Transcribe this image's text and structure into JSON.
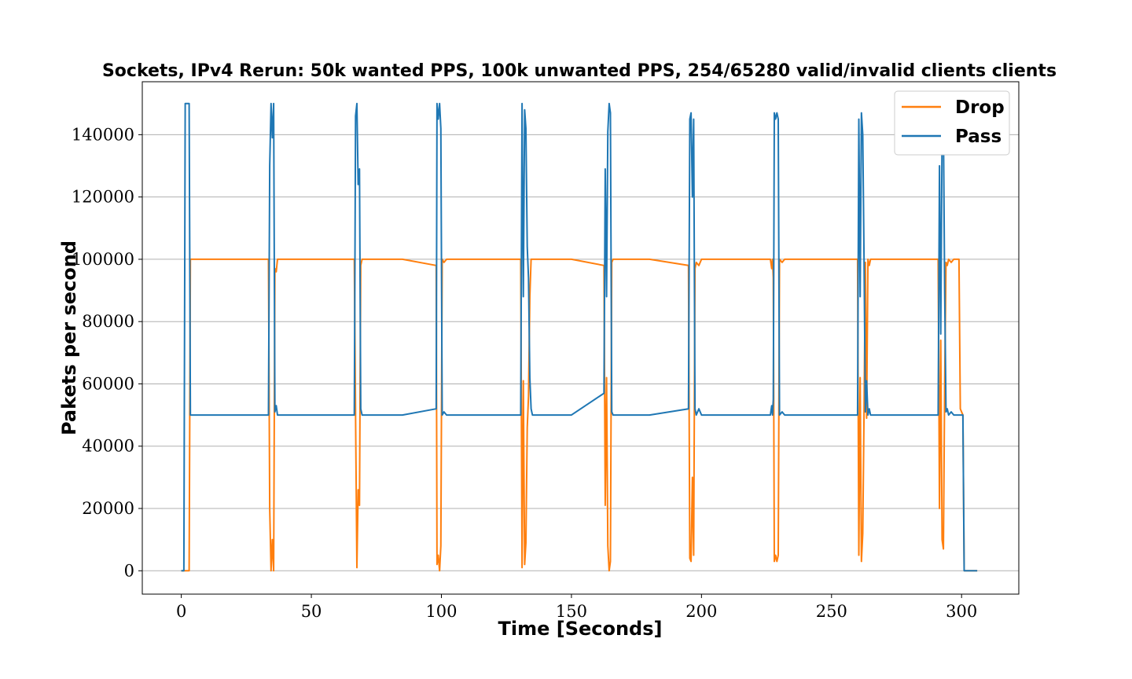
{
  "chart_data": {
    "type": "line",
    "title": "Sockets, IPv4 Rerun: 50k wanted PPS, 100k unwanted PPS, 254/65280 valid/invalid clients clients",
    "xlabel": "Time [Seconds]",
    "ylabel": "Pakets per second",
    "xlim": [
      -15,
      322
    ],
    "ylim": [
      -7500,
      157000
    ],
    "xticks": [
      0,
      50,
      100,
      150,
      200,
      250,
      300
    ],
    "yticks": [
      0,
      20000,
      40000,
      60000,
      80000,
      100000,
      120000,
      140000
    ],
    "grid": "horizontal",
    "legend_position": "top-right",
    "legend": [
      "Drop",
      "Pass"
    ],
    "series": [
      {
        "name": "Drop",
        "color": "#ff7f0e",
        "points": [
          [
            0,
            0
          ],
          [
            2,
            0
          ],
          [
            3,
            0
          ],
          [
            3.5,
            100000
          ],
          [
            20,
            100000
          ],
          [
            33.5,
            100000
          ],
          [
            34,
            20000
          ],
          [
            34.5,
            0
          ],
          [
            35,
            10000
          ],
          [
            35.5,
            0
          ],
          [
            36,
            97000
          ],
          [
            36.5,
            96000
          ],
          [
            37,
            100000
          ],
          [
            50,
            100000
          ],
          [
            66.5,
            100000
          ],
          [
            67,
            50000
          ],
          [
            67.5,
            1000
          ],
          [
            68,
            26000
          ],
          [
            68.5,
            21000
          ],
          [
            69,
            98000
          ],
          [
            69.5,
            100000
          ],
          [
            85,
            100000
          ],
          [
            98,
            98000
          ],
          [
            98.3,
            2000
          ],
          [
            98.8,
            5000
          ],
          [
            99.3,
            0
          ],
          [
            99.8,
            8000
          ],
          [
            100.3,
            100000
          ],
          [
            101,
            99000
          ],
          [
            102,
            100000
          ],
          [
            115,
            100000
          ],
          [
            130.5,
            100000
          ],
          [
            131,
            1000
          ],
          [
            131.5,
            61000
          ],
          [
            132,
            2000
          ],
          [
            132.5,
            9000
          ],
          [
            133,
            46000
          ],
          [
            133.5,
            56000
          ],
          [
            134,
            88000
          ],
          [
            134.5,
            100000
          ],
          [
            135,
            100000
          ],
          [
            150,
            100000
          ],
          [
            162.5,
            98000
          ],
          [
            163,
            21000
          ],
          [
            163.5,
            62000
          ],
          [
            164,
            8000
          ],
          [
            164.5,
            0
          ],
          [
            165,
            3000
          ],
          [
            165.5,
            99000
          ],
          [
            166,
            100000
          ],
          [
            180,
            100000
          ],
          [
            195,
            98000
          ],
          [
            195.5,
            4000
          ],
          [
            196,
            3000
          ],
          [
            196.5,
            30000
          ],
          [
            197,
            5000
          ],
          [
            197.5,
            97000
          ],
          [
            198,
            99000
          ],
          [
            199,
            98000
          ],
          [
            200,
            100000
          ],
          [
            215,
            100000
          ],
          [
            226.5,
            100000
          ],
          [
            227,
            97000
          ],
          [
            227.3,
            100000
          ],
          [
            227.6,
            94000
          ],
          [
            228,
            3000
          ],
          [
            228.5,
            5000
          ],
          [
            229,
            3000
          ],
          [
            229.5,
            5000
          ],
          [
            230,
            100000
          ],
          [
            231,
            99000
          ],
          [
            232,
            100000
          ],
          [
            245,
            100000
          ],
          [
            260,
            100000
          ],
          [
            260.5,
            5000
          ],
          [
            261,
            62000
          ],
          [
            261.5,
            3000
          ],
          [
            262,
            12000
          ],
          [
            262.5,
            50000
          ],
          [
            263,
            99000
          ],
          [
            263.5,
            49000
          ],
          [
            264,
            100000
          ],
          [
            264.5,
            98000
          ],
          [
            265,
            100000
          ],
          [
            280,
            100000
          ],
          [
            291,
            100000
          ],
          [
            291.5,
            20000
          ],
          [
            292,
            74000
          ],
          [
            292.5,
            10000
          ],
          [
            293,
            7000
          ],
          [
            293.5,
            60000
          ],
          [
            294,
            99000
          ],
          [
            294.5,
            98000
          ],
          [
            295,
            100000
          ],
          [
            296,
            99000
          ],
          [
            297,
            100000
          ],
          [
            299,
            100000
          ],
          [
            299.5,
            52000
          ],
          [
            300,
            51000
          ],
          [
            300.5,
            50000
          ],
          [
            301,
            0
          ],
          [
            306,
            0
          ]
        ]
      },
      {
        "name": "Pass",
        "color": "#1f77b4",
        "points": [
          [
            0,
            0
          ],
          [
            1,
            0
          ],
          [
            1.5,
            150000
          ],
          [
            3,
            150000
          ],
          [
            3.5,
            50000
          ],
          [
            20,
            50000
          ],
          [
            33.5,
            50000
          ],
          [
            34,
            130000
          ],
          [
            34.5,
            150000
          ],
          [
            35,
            139000
          ],
          [
            35.5,
            150000
          ],
          [
            36,
            51000
          ],
          [
            36.5,
            53000
          ],
          [
            37,
            50000
          ],
          [
            50,
            50000
          ],
          [
            66.5,
            50000
          ],
          [
            67,
            146000
          ],
          [
            67.5,
            150000
          ],
          [
            68,
            124000
          ],
          [
            68.5,
            129000
          ],
          [
            69,
            52000
          ],
          [
            69.5,
            50000
          ],
          [
            85,
            50000
          ],
          [
            98,
            52000
          ],
          [
            98.3,
            150000
          ],
          [
            98.8,
            145000
          ],
          [
            99.3,
            150000
          ],
          [
            99.8,
            142000
          ],
          [
            100.3,
            50000
          ],
          [
            101,
            51000
          ],
          [
            102,
            50000
          ],
          [
            115,
            50000
          ],
          [
            130.5,
            50000
          ],
          [
            131,
            150000
          ],
          [
            131.5,
            88000
          ],
          [
            132,
            148000
          ],
          [
            132.5,
            142000
          ],
          [
            133,
            104000
          ],
          [
            133.5,
            94000
          ],
          [
            134,
            62000
          ],
          [
            134.5,
            52000
          ],
          [
            135,
            50000
          ],
          [
            150,
            50000
          ],
          [
            162.5,
            57000
          ],
          [
            163,
            129000
          ],
          [
            163.5,
            88000
          ],
          [
            164,
            141000
          ],
          [
            164.5,
            150000
          ],
          [
            165,
            147000
          ],
          [
            165.5,
            51000
          ],
          [
            166,
            50000
          ],
          [
            180,
            50000
          ],
          [
            195,
            52000
          ],
          [
            195.5,
            145000
          ],
          [
            196,
            147000
          ],
          [
            196.5,
            120000
          ],
          [
            197,
            145000
          ],
          [
            197.5,
            52000
          ],
          [
            198,
            50000
          ],
          [
            199,
            52000
          ],
          [
            200,
            50000
          ],
          [
            215,
            50000
          ],
          [
            226.5,
            50000
          ],
          [
            227,
            53000
          ],
          [
            227.3,
            50000
          ],
          [
            227.6,
            55000
          ],
          [
            228,
            147000
          ],
          [
            228.5,
            145000
          ],
          [
            229,
            147000
          ],
          [
            229.5,
            145000
          ],
          [
            230,
            50000
          ],
          [
            231,
            51000
          ],
          [
            232,
            50000
          ],
          [
            245,
            50000
          ],
          [
            260,
            50000
          ],
          [
            260.5,
            145000
          ],
          [
            261,
            88000
          ],
          [
            261.5,
            147000
          ],
          [
            262,
            140000
          ],
          [
            262.5,
            101000
          ],
          [
            263,
            51000
          ],
          [
            263.5,
            61000
          ],
          [
            264,
            50000
          ],
          [
            264.5,
            52000
          ],
          [
            265,
            50000
          ],
          [
            280,
            50000
          ],
          [
            291,
            50000
          ],
          [
            291.5,
            130000
          ],
          [
            292,
            76000
          ],
          [
            292.5,
            140000
          ],
          [
            293,
            143000
          ],
          [
            293.5,
            90000
          ],
          [
            294,
            51000
          ],
          [
            294.5,
            52000
          ],
          [
            295,
            50000
          ],
          [
            296,
            51000
          ],
          [
            297,
            50000
          ],
          [
            299,
            50000
          ],
          [
            299.5,
            50000
          ],
          [
            300,
            50000
          ],
          [
            300.5,
            50000
          ],
          [
            301,
            0
          ],
          [
            306,
            0
          ]
        ]
      }
    ]
  }
}
